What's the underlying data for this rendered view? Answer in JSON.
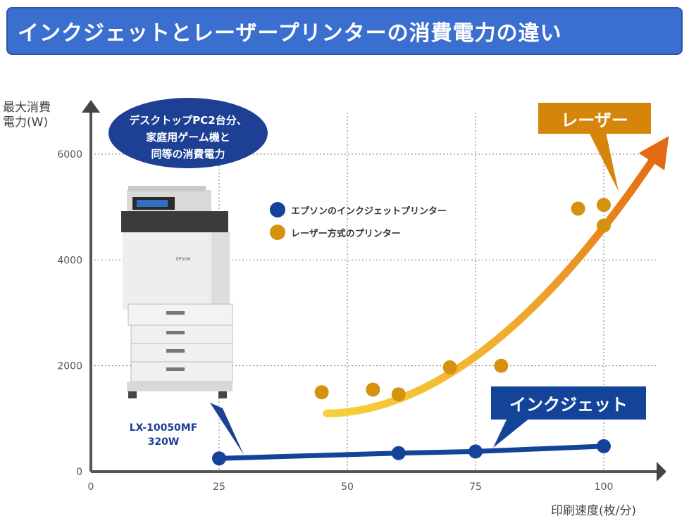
{
  "title": "インクジェットとレーザープリンターの消費電力の違い",
  "bubble_text": [
    "デスクトップPC2台分、",
    "家庭用ゲーム機と",
    "同等の消費電力"
  ],
  "model": {
    "name": "LX-10050MF",
    "power": "320W"
  },
  "printer_brand": "EPSON",
  "callouts": {
    "laser": "レーザー",
    "inkjet": "インクジェット"
  },
  "colors": {
    "inkjet": "#14449a",
    "laser": "#d4920f",
    "title_bg": "#3a6fd0"
  },
  "chart_data": {
    "type": "scatter",
    "ylabel_lines": [
      "最大消費",
      "電力(W)"
    ],
    "xlabel": "印刷速度(枚/分)",
    "xlim": [
      0,
      110
    ],
    "ylim": [
      0,
      6500
    ],
    "x_ticks": [
      0,
      25,
      50,
      75,
      100
    ],
    "y_ticks": [
      0,
      2000,
      4000,
      6000
    ],
    "grid": true,
    "legend_position": "center",
    "series": [
      {
        "name": "エプソンのインクジェットプリンター",
        "color": "#14449a",
        "points": [
          [
            25,
            250
          ],
          [
            60,
            350
          ],
          [
            75,
            380
          ],
          [
            100,
            480
          ]
        ]
      },
      {
        "name": "レーザー方式のプリンター",
        "color": "#d4920f",
        "points": [
          [
            45,
            1500
          ],
          [
            55,
            1550
          ],
          [
            60,
            1460
          ],
          [
            70,
            1970
          ],
          [
            80,
            2000
          ],
          [
            95,
            4970
          ],
          [
            100,
            5040
          ],
          [
            100,
            4650
          ]
        ]
      }
    ]
  }
}
